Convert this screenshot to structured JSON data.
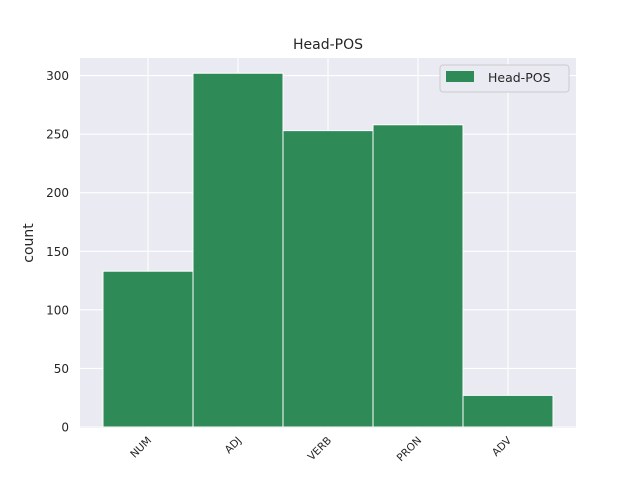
{
  "chart_data": {
    "type": "bar",
    "title": "Head-POS",
    "xlabel": "",
    "ylabel": "count",
    "categories": [
      "NUM",
      "ADJ",
      "VERB",
      "PRON",
      "ADV"
    ],
    "series": [
      {
        "name": "Head-POS",
        "values": [
          133,
          302,
          253,
          258,
          27
        ]
      }
    ],
    "ylim": [
      0,
      315
    ],
    "yticks": [
      0,
      50,
      100,
      150,
      200,
      250,
      300
    ],
    "grid": true,
    "legend": "top-right",
    "colors": {
      "bar": "#2e8b57",
      "background": "#eaeaf2",
      "grid": "#ffffff"
    }
  }
}
